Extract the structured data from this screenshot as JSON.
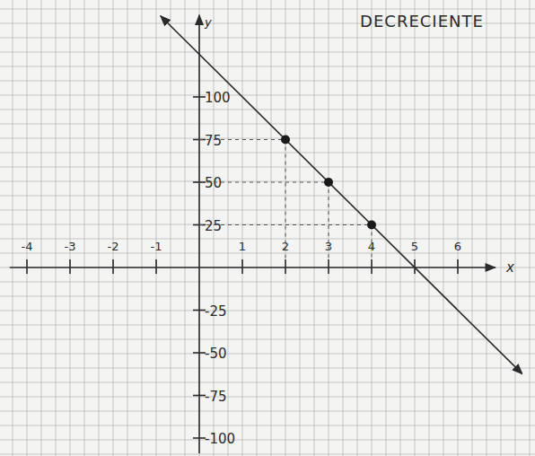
{
  "chart_data": {
    "type": "line",
    "title": "DECRECIENTE",
    "x_label": "x",
    "y_label": "y",
    "xlim": [
      -4.4,
      7.5
    ],
    "ylim": [
      -109,
      148
    ],
    "xticks": [
      -4,
      -3,
      -2,
      -1,
      1,
      2,
      3,
      4,
      5,
      6
    ],
    "yticks": [
      -100,
      -75,
      -50,
      -25,
      25,
      50,
      75,
      100
    ],
    "grid": true,
    "tick_labels": true,
    "series": [
      {
        "type": "line",
        "x": [
          -0.9,
          7.5
        ],
        "values": [
          147.5,
          -62.5
        ],
        "color": "#2b2b2b",
        "line_style": "solid",
        "marker": "none"
      },
      {
        "type": "scatter",
        "x": [
          2,
          3,
          4
        ],
        "values": [
          75,
          50,
          25
        ],
        "color": "#1a1a1a",
        "line_style": "dashed",
        "marker": "circle"
      }
    ]
  }
}
